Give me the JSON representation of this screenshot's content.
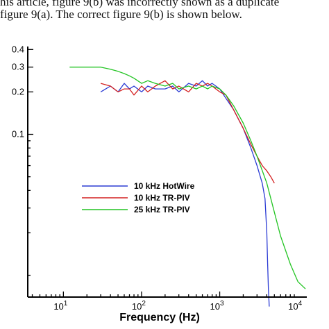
{
  "header": {
    "line1": "his article, figure 9(b) was incorrectly shown as a duplicate",
    "line2": "figure 9(a). The correct figure 9(b) is shown below."
  },
  "chart_data": {
    "type": "line",
    "xscale": "log",
    "yscale": "log",
    "xlabel": "Frequency (Hz)",
    "ylabel": "",
    "xlim": [
      3.5,
      13000
    ],
    "ylim": [
      0.007,
      0.42
    ],
    "x_ticks": [
      {
        "value": 10,
        "base": "10",
        "exp": "1"
      },
      {
        "value": 100,
        "base": "10",
        "exp": "2"
      },
      {
        "value": 1000,
        "base": "10",
        "exp": "3"
      },
      {
        "value": 10000,
        "base": "10",
        "exp": "4"
      }
    ],
    "y_ticks": [
      {
        "value": 0.4,
        "label": "0.4"
      },
      {
        "value": 0.3,
        "label": "0.3"
      },
      {
        "value": 0.2,
        "label": "0.2"
      },
      {
        "value": 0.1,
        "label": "0.1"
      }
    ],
    "legend_position": "center-left",
    "series": [
      {
        "name": "10 kHz HotWire",
        "color": "#2b3bd4",
        "x": [
          30,
          40,
          50,
          60,
          70,
          80,
          100,
          120,
          150,
          200,
          250,
          300,
          400,
          500,
          600,
          700,
          800,
          1000,
          1200,
          1500,
          2000,
          2500,
          3000,
          3500,
          3800,
          4000,
          4100,
          4200,
          4300
        ],
        "y": [
          0.2,
          0.22,
          0.2,
          0.23,
          0.21,
          0.22,
          0.2,
          0.22,
          0.21,
          0.21,
          0.22,
          0.2,
          0.23,
          0.22,
          0.24,
          0.22,
          0.23,
          0.21,
          0.18,
          0.15,
          0.11,
          0.08,
          0.06,
          0.045,
          0.035,
          0.02,
          0.012,
          0.008,
          0.006
        ]
      },
      {
        "name": "10 kHz TR-PIV",
        "color": "#d42020",
        "x": [
          30,
          40,
          50,
          60,
          70,
          80,
          100,
          120,
          150,
          200,
          250,
          300,
          400,
          500,
          600,
          700,
          800,
          1000,
          1200,
          1500,
          2000,
          2500,
          3000,
          3500,
          4000,
          4500,
          5000
        ],
        "y": [
          0.23,
          0.22,
          0.2,
          0.21,
          0.21,
          0.19,
          0.22,
          0.2,
          0.22,
          0.24,
          0.21,
          0.22,
          0.2,
          0.23,
          0.22,
          0.23,
          0.22,
          0.2,
          0.19,
          0.15,
          0.11,
          0.085,
          0.07,
          0.06,
          0.055,
          0.05,
          0.045
        ]
      },
      {
        "name": "25 kHz TR-PIV",
        "color": "#22c422",
        "x": [
          12,
          15,
          20,
          30,
          40,
          50,
          60,
          70,
          80,
          100,
          120,
          150,
          200,
          250,
          300,
          400,
          500,
          600,
          700,
          800,
          1000,
          1200,
          1500,
          2000,
          2500,
          3000,
          4000,
          5000,
          6000,
          8000,
          10000,
          12500
        ],
        "y": [
          0.3,
          0.3,
          0.3,
          0.3,
          0.29,
          0.28,
          0.27,
          0.26,
          0.25,
          0.23,
          0.24,
          0.23,
          0.22,
          0.23,
          0.21,
          0.22,
          0.21,
          0.22,
          0.21,
          0.22,
          0.21,
          0.19,
          0.16,
          0.12,
          0.09,
          0.07,
          0.045,
          0.028,
          0.019,
          0.012,
          0.009,
          0.008
        ]
      }
    ]
  }
}
